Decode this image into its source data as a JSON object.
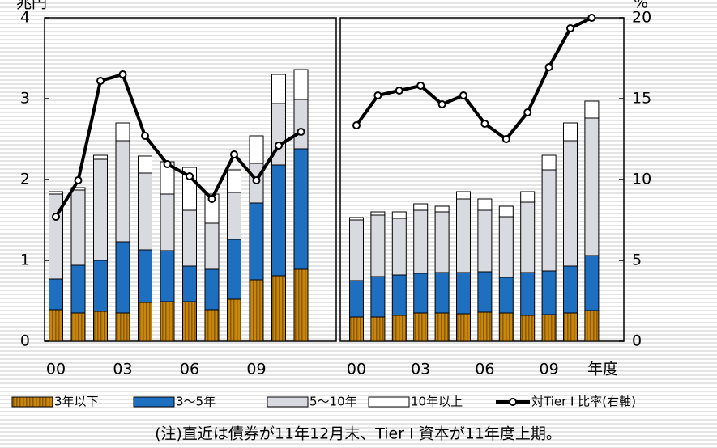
{
  "chart_data": [
    {
      "type": "bar",
      "y_label": "兆円",
      "categories": [
        "00",
        null,
        null,
        "03",
        null,
        null,
        "06",
        null,
        null,
        "09",
        null,
        null
      ],
      "ylim": [
        0,
        4
      ],
      "yticks": [
        0,
        1,
        2,
        3,
        4
      ],
      "y2lim": [
        0,
        20
      ],
      "series": [
        {
          "name": "3年以下",
          "color": "#c8860a",
          "values": [
            0.39,
            0.35,
            0.37,
            0.35,
            0.48,
            0.49,
            0.49,
            0.39,
            0.52,
            0.76,
            0.81,
            0.89
          ]
        },
        {
          "name": "3〜5年",
          "color": "#1f6fc0",
          "values": [
            0.38,
            0.59,
            0.63,
            0.88,
            0.65,
            0.63,
            0.44,
            0.5,
            0.74,
            0.95,
            1.37,
            1.49
          ]
        },
        {
          "name": "5〜10年",
          "color": "#d9d9e0",
          "values": [
            1.05,
            0.93,
            1.25,
            1.25,
            0.95,
            0.7,
            0.69,
            0.57,
            0.58,
            0.49,
            0.76,
            0.61
          ]
        },
        {
          "name": "10年以上",
          "color": "#ffffff",
          "values": [
            0.03,
            0.03,
            0.05,
            0.22,
            0.21,
            0.4,
            0.53,
            0.36,
            0.28,
            0.34,
            0.36,
            0.37
          ]
        },
        {
          "name": "対Tier I 比率(右軸)",
          "color": "#000000",
          "axis": "y2",
          "values": [
            7.7,
            9.95,
            16.1,
            16.5,
            12.7,
            10.95,
            10.2,
            8.8,
            11.55,
            9.95,
            12.1,
            12.95
          ]
        }
      ]
    },
    {
      "type": "bar",
      "y2_label": "%",
      "x_label": "年度",
      "categories": [
        "00",
        null,
        null,
        "03",
        null,
        null,
        "06",
        null,
        null,
        "09",
        null,
        null
      ],
      "ylim": [
        0,
        4
      ],
      "y2lim": [
        0,
        20
      ],
      "y2ticks": [
        0,
        5,
        10,
        15,
        20
      ],
      "series": [
        {
          "name": "3年以下",
          "color": "#c8860a",
          "values": [
            0.3,
            0.3,
            0.32,
            0.35,
            0.35,
            0.34,
            0.36,
            0.35,
            0.32,
            0.33,
            0.35,
            0.38
          ]
        },
        {
          "name": "3〜5年",
          "color": "#1f6fc0",
          "values": [
            0.45,
            0.5,
            0.5,
            0.49,
            0.5,
            0.51,
            0.5,
            0.44,
            0.53,
            0.54,
            0.58,
            0.68
          ]
        },
        {
          "name": "5〜10年",
          "color": "#d9d9e0",
          "values": [
            0.75,
            0.76,
            0.7,
            0.78,
            0.75,
            0.91,
            0.76,
            0.75,
            0.87,
            1.25,
            1.55,
            1.7
          ]
        },
        {
          "name": "10年以上",
          "color": "#ffffff",
          "values": [
            0.03,
            0.04,
            0.08,
            0.08,
            0.07,
            0.09,
            0.14,
            0.13,
            0.13,
            0.18,
            0.22,
            0.21
          ]
        },
        {
          "name": "対Tier I 比率(右軸)",
          "color": "#000000",
          "axis": "y2",
          "values": [
            13.35,
            15.2,
            15.5,
            15.8,
            14.65,
            15.2,
            13.45,
            12.5,
            14.15,
            16.95,
            19.35,
            20
          ]
        }
      ]
    }
  ],
  "note": "(注)直近は債券が11年12月末、Tier I 資本が11年度上期。"
}
